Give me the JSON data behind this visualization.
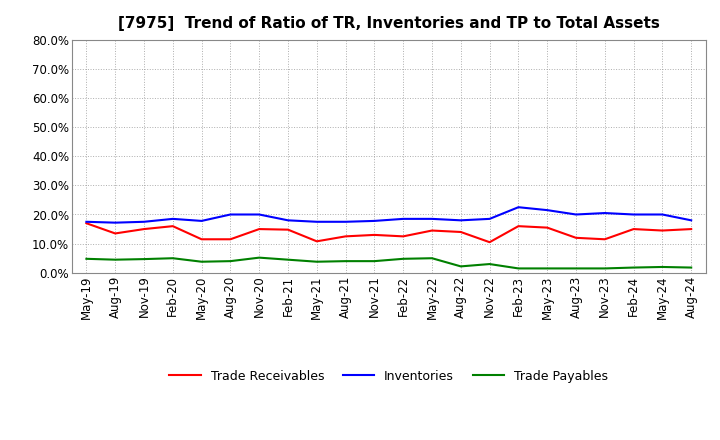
{
  "title": "[7975]  Trend of Ratio of TR, Inventories and TP to Total Assets",
  "x_labels": [
    "May-19",
    "Aug-19",
    "Nov-19",
    "Feb-20",
    "May-20",
    "Aug-20",
    "Nov-20",
    "Feb-21",
    "May-21",
    "Aug-21",
    "Nov-21",
    "Feb-22",
    "May-22",
    "Aug-22",
    "Nov-22",
    "Feb-23",
    "May-23",
    "Aug-23",
    "Nov-23",
    "Feb-24",
    "May-24",
    "Aug-24"
  ],
  "trade_receivables": [
    0.17,
    0.135,
    0.15,
    0.16,
    0.115,
    0.115,
    0.15,
    0.148,
    0.108,
    0.125,
    0.13,
    0.125,
    0.145,
    0.14,
    0.105,
    0.16,
    0.155,
    0.12,
    0.115,
    0.15,
    0.145,
    0.15
  ],
  "inventories": [
    0.175,
    0.172,
    0.175,
    0.185,
    0.178,
    0.2,
    0.2,
    0.18,
    0.175,
    0.175,
    0.178,
    0.185,
    0.185,
    0.18,
    0.185,
    0.225,
    0.215,
    0.2,
    0.205,
    0.2,
    0.2,
    0.18
  ],
  "trade_payables": [
    0.048,
    0.045,
    0.047,
    0.05,
    0.038,
    0.04,
    0.052,
    0.045,
    0.038,
    0.04,
    0.04,
    0.048,
    0.05,
    0.022,
    0.03,
    0.015,
    0.015,
    0.015,
    0.015,
    0.018,
    0.02,
    0.018
  ],
  "ylim": [
    0.0,
    0.8
  ],
  "yticks": [
    0.0,
    0.1,
    0.2,
    0.3,
    0.4,
    0.5,
    0.6,
    0.7,
    0.8
  ],
  "colors": {
    "trade_receivables": "#FF0000",
    "inventories": "#0000FF",
    "trade_payables": "#008000"
  },
  "background_color": "#FFFFFF",
  "plot_bg_color": "#FFFFFF",
  "grid_color": "#999999",
  "title_fontsize": 11,
  "tick_fontsize": 8.5,
  "legend_fontsize": 9
}
